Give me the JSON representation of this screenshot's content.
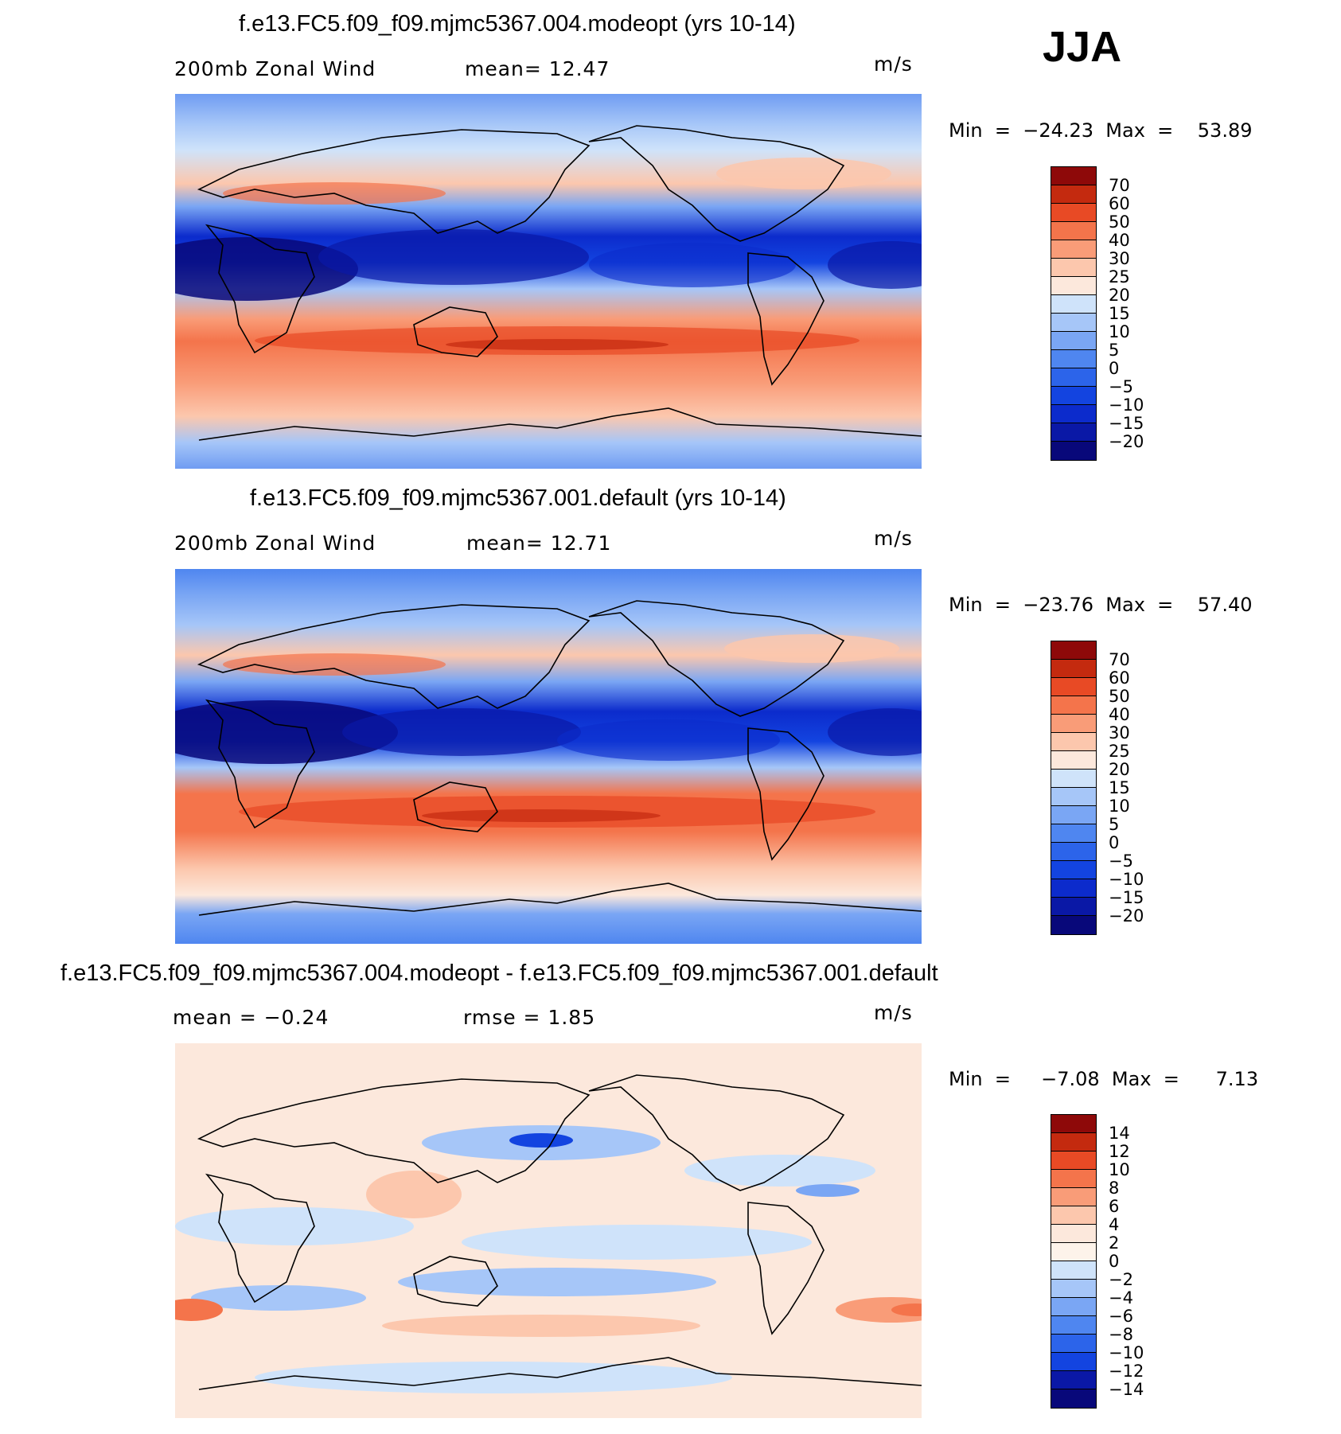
{
  "season": "JJA",
  "colors": {
    "ramp23": [
      "#08087a",
      "#0a18a6",
      "#0c2bcc",
      "#1344e0",
      "#2c64ea",
      "#4f86f0",
      "#7aa6f4",
      "#a6c6f8",
      "#cfe3fa",
      "#fce8dc",
      "#fcc7ad",
      "#f99c78",
      "#f4744b",
      "#e84a25",
      "#c42a0f",
      "#8e0909"
    ],
    "ramp_diff": [
      "#08087a",
      "#0a18a6",
      "#0c2bcc",
      "#1344e0",
      "#2c64ea",
      "#4f86f0",
      "#7aa6f4",
      "#a6c6f8",
      "#cfe3fa",
      "#fce8dc",
      "#fcc7ad",
      "#f99c78",
      "#f4744b",
      "#e84a25",
      "#c42a0f",
      "#8e0909"
    ]
  },
  "panels": [
    {
      "title": "f.e13.FC5.f09_f09.mjmc5367.004.modeopt (yrs 10-14)",
      "left_label": "200mb  Zonal Wind",
      "mid_label": "mean=   12.47",
      "units": "m/s",
      "minmax": "Min  =  −24.23  Max  =    53.89",
      "levels": [
        "70",
        "60",
        "50",
        "40",
        "30",
        "25",
        "20",
        "15",
        "10",
        "5",
        "0",
        "−5",
        "−10",
        "−15",
        "−20"
      ]
    },
    {
      "title": "f.e13.FC5.f09_f09.mjmc5367.001.default (yrs 10-14)",
      "left_label": "200mb  Zonal Wind",
      "mid_label": "mean=   12.71",
      "units": "m/s",
      "minmax": "Min  =  −23.76  Max  =    57.40",
      "levels": [
        "70",
        "60",
        "50",
        "40",
        "30",
        "25",
        "20",
        "15",
        "10",
        "5",
        "0",
        "−5",
        "−10",
        "−15",
        "−20"
      ]
    },
    {
      "title": "f.e13.FC5.f09_f09.mjmc5367.004.modeopt - f.e13.FC5.f09_f09.mjmc5367.001.default",
      "left_label": "mean  =    −0.24",
      "mid_label": "rmse  =     1.85",
      "units": "m/s",
      "minmax": "Min  =     −7.08  Max  =      7.13",
      "levels": [
        "14",
        "12",
        "10",
        "8",
        "6",
        "4",
        "2",
        "0",
        "−2",
        "−4",
        "−6",
        "−8",
        "−10",
        "−12",
        "−14"
      ]
    }
  ]
}
